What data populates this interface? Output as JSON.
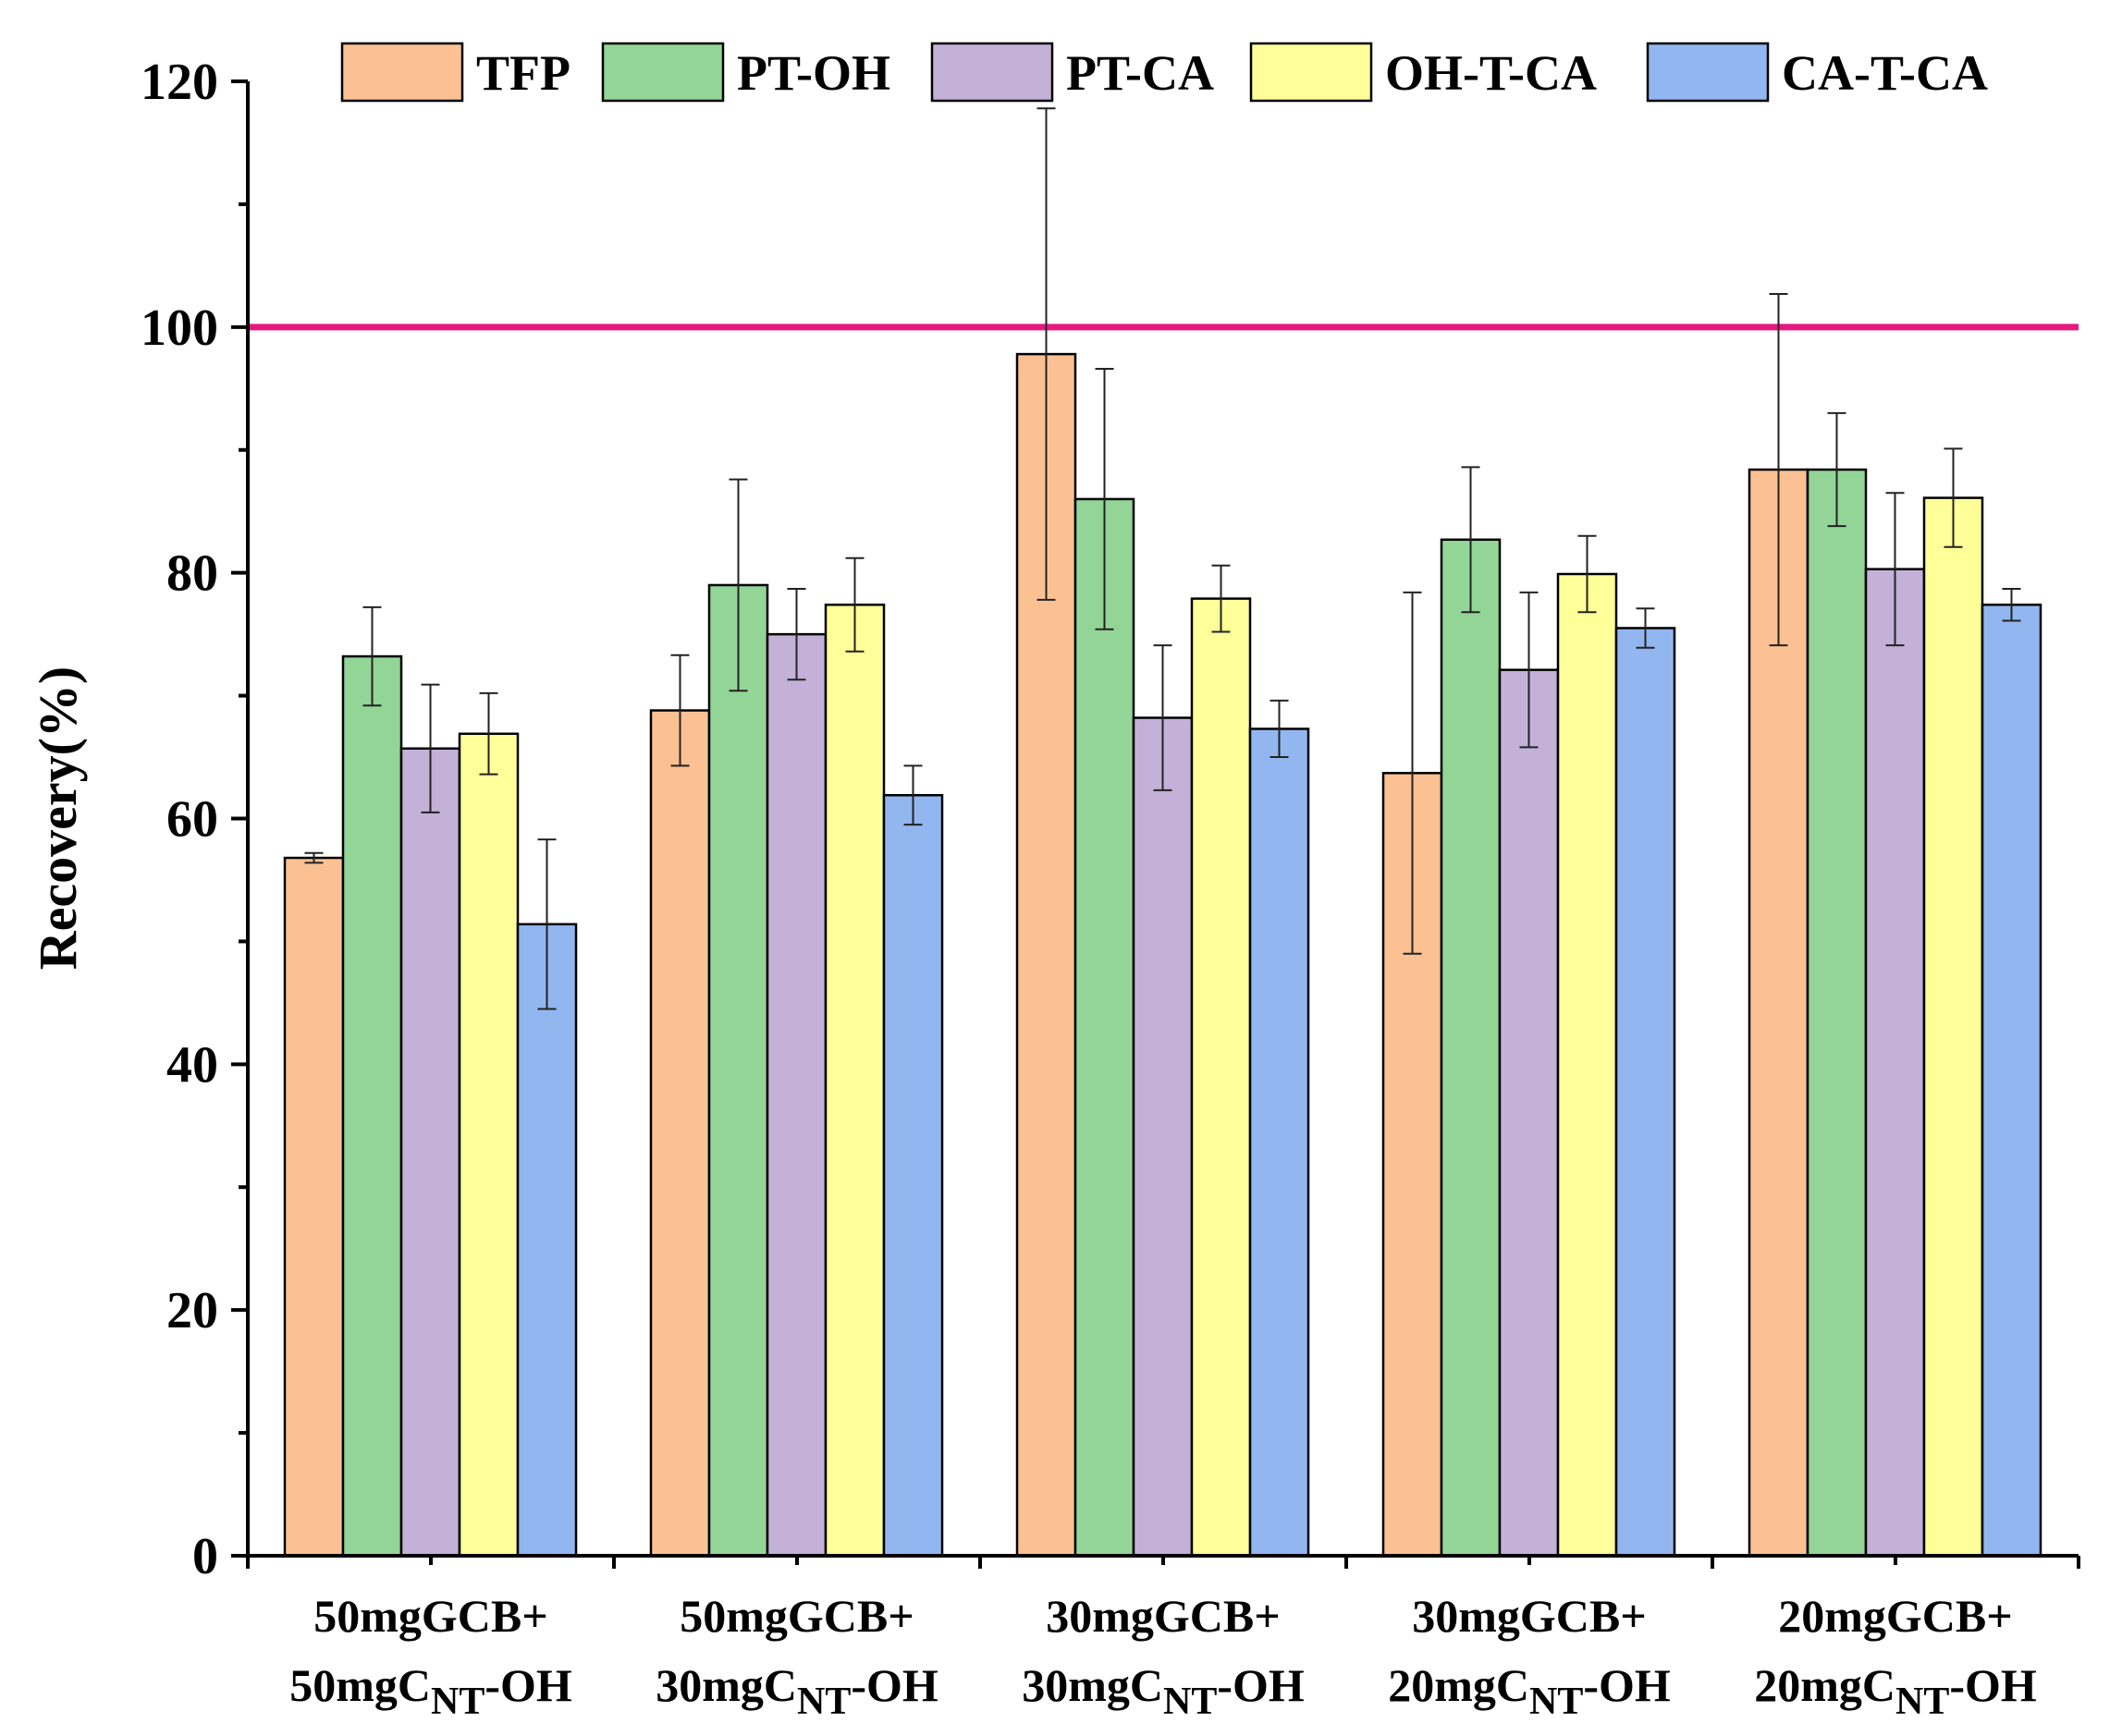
{
  "chart_data": {
    "type": "bar",
    "title": "",
    "xlabel": "",
    "ylabel": "Recovery(%)",
    "ylim": [
      0,
      120
    ],
    "yticks": [
      0,
      20,
      40,
      60,
      80,
      100,
      120
    ],
    "reference_line": {
      "value": 100,
      "color": "#e6197f"
    },
    "categories": [
      {
        "line1": "50mgGCB+",
        "prefix": "50mgC",
        "sub": "NT",
        "suffix": "-OH"
      },
      {
        "line1": "50mgGCB+",
        "prefix": "30mgC",
        "sub": "NT",
        "suffix": "-OH"
      },
      {
        "line1": "30mgGCB+",
        "prefix": "30mgC",
        "sub": "NT",
        "suffix": "-OH"
      },
      {
        "line1": "30mgGCB+",
        "prefix": "20mgC",
        "sub": "NT",
        "suffix": "-OH"
      },
      {
        "line1": "20mgGCB+",
        "prefix": "20mgC",
        "sub": "NT",
        "suffix": "-OH"
      }
    ],
    "series": [
      {
        "name": "TFP",
        "color": "#fbc193",
        "values": [
          56.8,
          68.8,
          97.8,
          63.7,
          88.4
        ],
        "errors": [
          0.4,
          4.5,
          20.0,
          14.7,
          14.3
        ]
      },
      {
        "name": "PT-OH",
        "color": "#93d597",
        "values": [
          73.2,
          79.0,
          86.0,
          82.7,
          88.4
        ],
        "errors": [
          4.0,
          8.6,
          10.6,
          5.9,
          4.6
        ]
      },
      {
        "name": "PT-CA",
        "color": "#c3b1d8",
        "values": [
          65.7,
          75.0,
          68.2,
          72.1,
          80.3
        ],
        "errors": [
          5.2,
          3.7,
          5.9,
          6.3,
          6.2
        ]
      },
      {
        "name": "OH-T-CA",
        "color": "#ffff99",
        "values": [
          66.9,
          77.4,
          77.9,
          79.9,
          86.1
        ],
        "errors": [
          3.3,
          3.8,
          2.7,
          3.1,
          4.0
        ]
      },
      {
        "name": "CA-T-CA",
        "color": "#92b6f0",
        "values": [
          51.4,
          61.9,
          67.3,
          75.5,
          77.4
        ],
        "errors": [
          6.9,
          2.4,
          2.3,
          1.6,
          1.3
        ]
      }
    ],
    "legend_position": "top"
  }
}
